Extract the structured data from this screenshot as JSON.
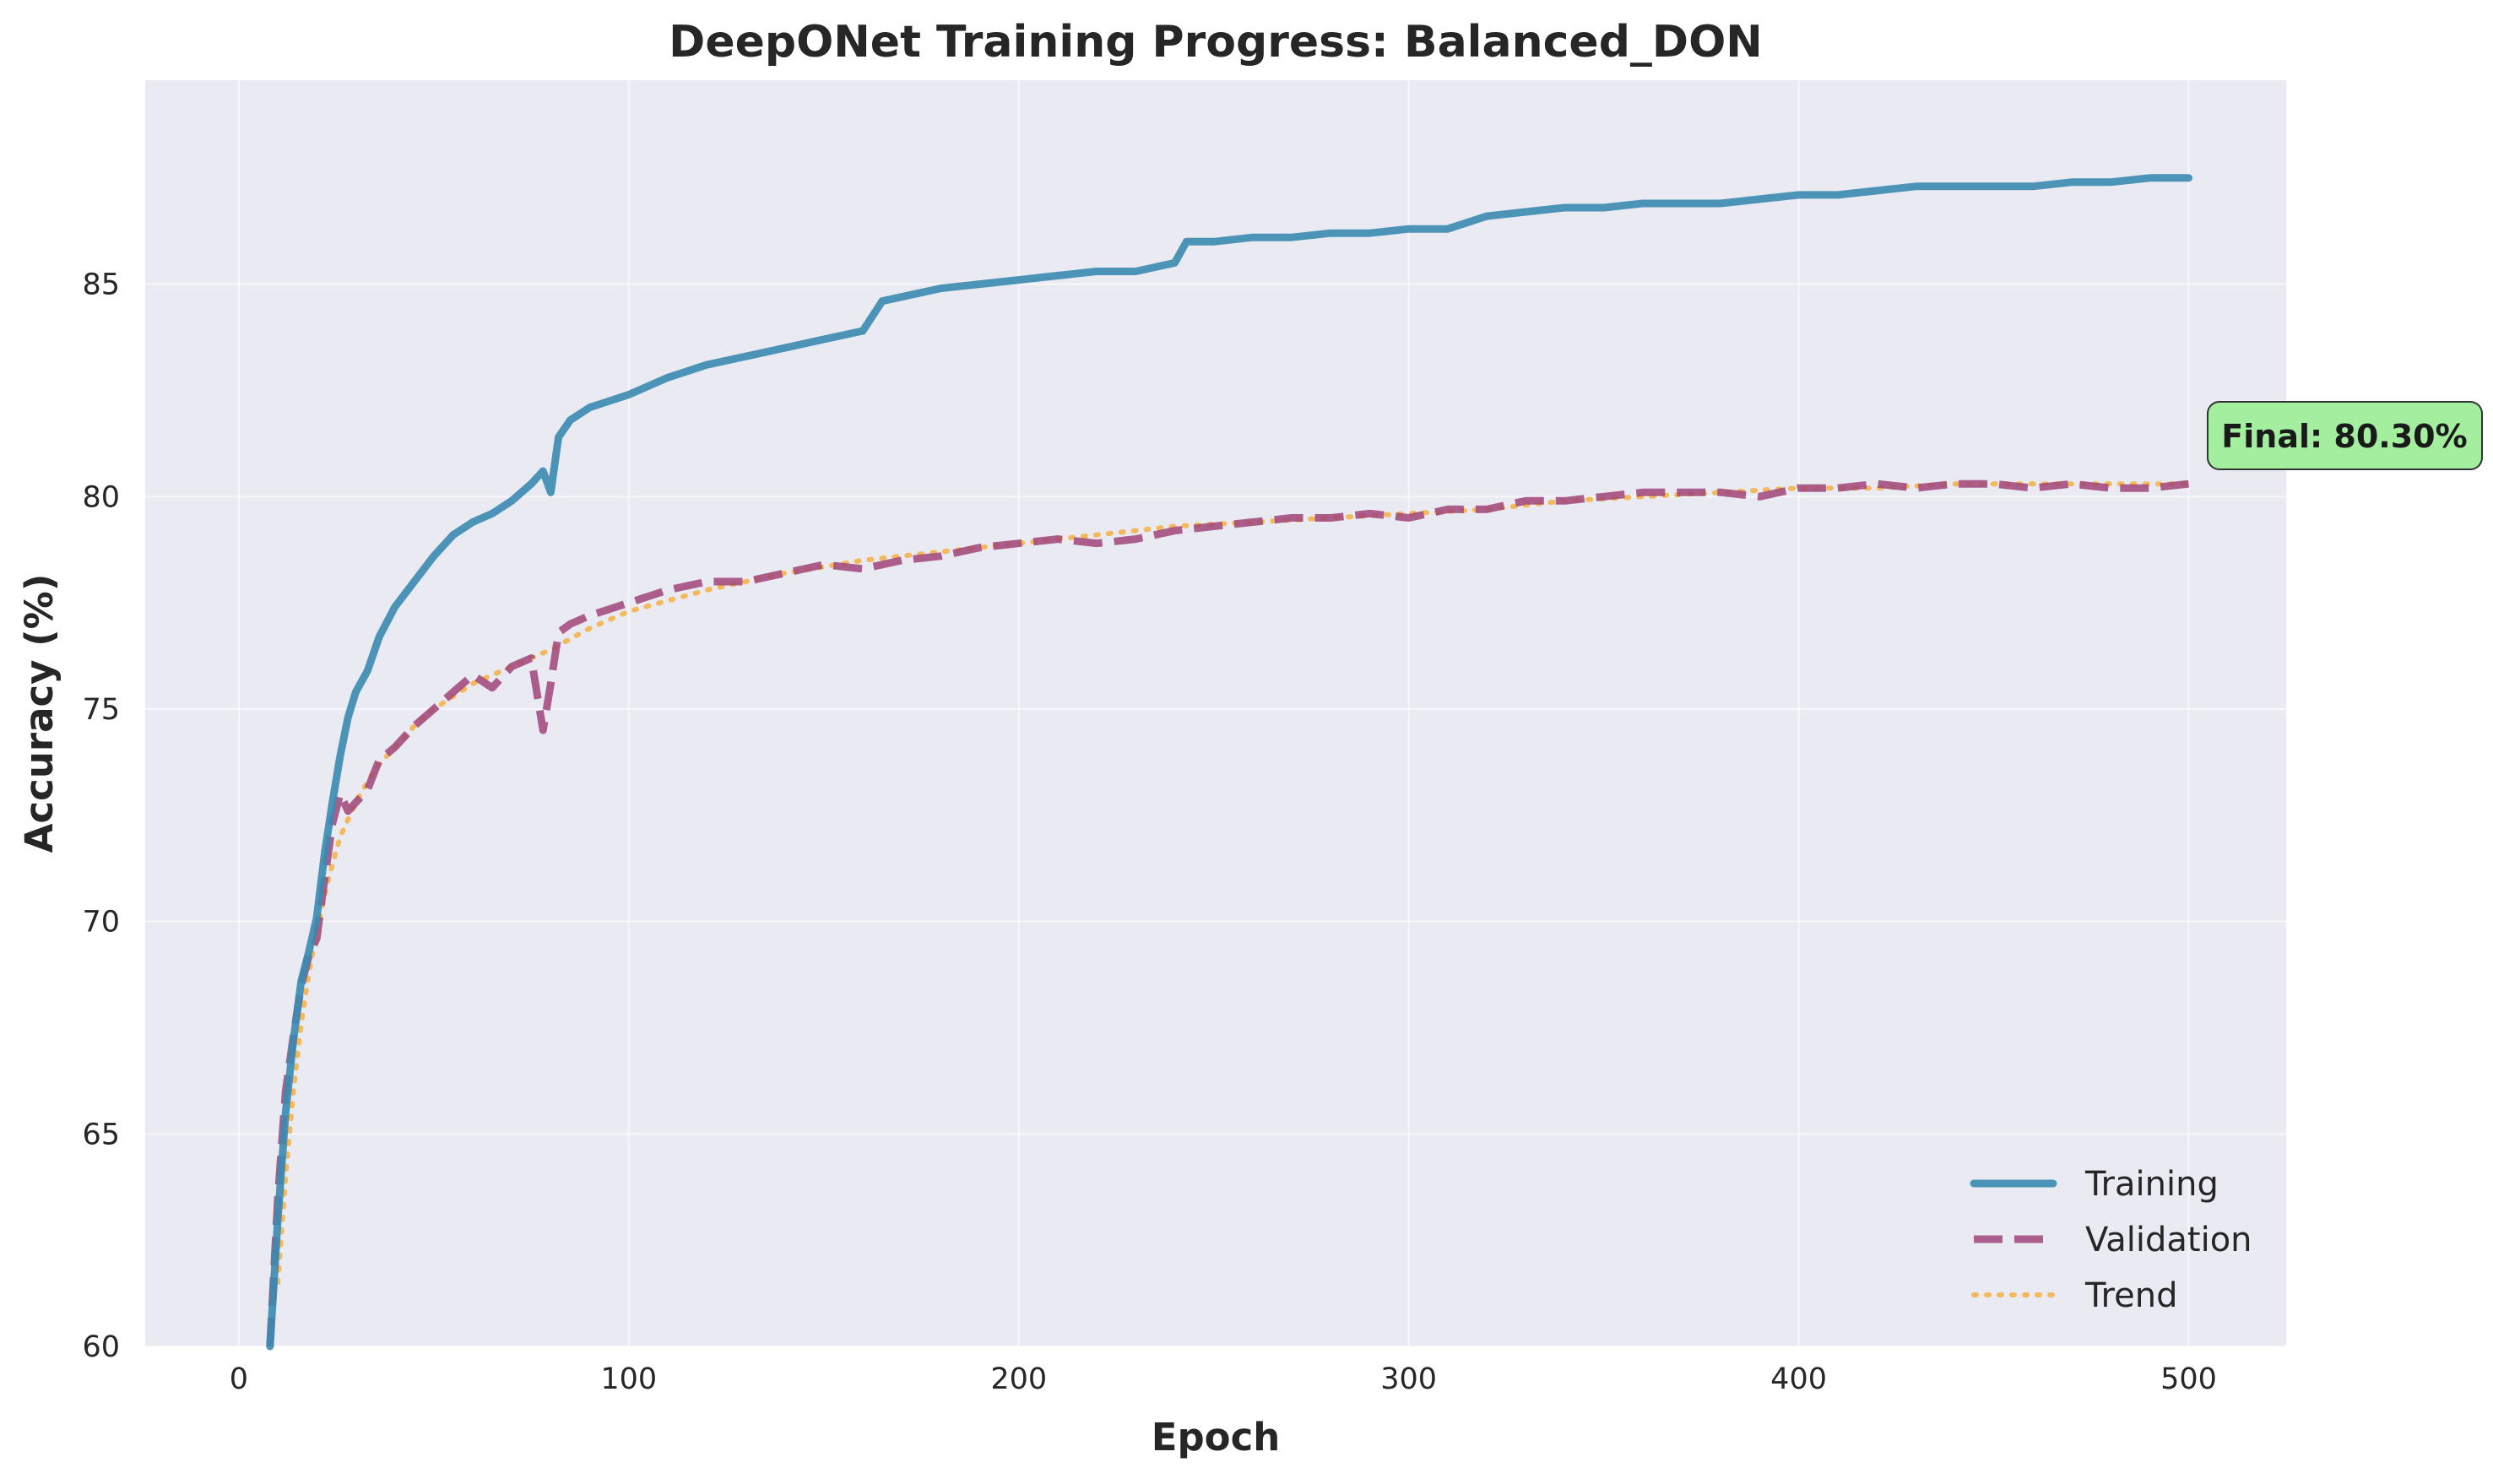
{
  "chart_data": {
    "type": "line",
    "title": "DeepONet Training Progress: Balanced_DON",
    "xlabel": "Epoch",
    "ylabel": "Accuracy (%)",
    "xlim": [
      -24,
      525
    ],
    "ylim": [
      60,
      89.8
    ],
    "xticks": [
      0,
      100,
      200,
      300,
      400,
      500
    ],
    "yticks": [
      60,
      65,
      70,
      75,
      80,
      85
    ],
    "grid": true,
    "legend_position": "lower-right",
    "annotation": "Final: 80.30%",
    "series": [
      {
        "name": "Training",
        "color": "#3a8bb0",
        "style": "solid",
        "x": [
          8,
          10,
          12,
          14,
          16,
          18,
          20,
          22,
          24,
          26,
          28,
          30,
          33,
          36,
          40,
          45,
          50,
          55,
          60,
          65,
          70,
          75,
          78,
          80,
          82,
          85,
          90,
          100,
          110,
          120,
          130,
          140,
          150,
          160,
          165,
          170,
          180,
          190,
          200,
          210,
          220,
          230,
          240,
          243,
          250,
          260,
          270,
          280,
          290,
          300,
          310,
          320,
          330,
          340,
          350,
          360,
          370,
          380,
          390,
          400,
          410,
          420,
          430,
          440,
          450,
          460,
          470,
          480,
          490,
          500
        ],
        "values": [
          60,
          63,
          65.5,
          67.2,
          68.6,
          69.3,
          70.1,
          71.6,
          72.8,
          73.9,
          74.8,
          75.4,
          75.9,
          76.7,
          77.4,
          78.0,
          78.6,
          79.1,
          79.4,
          79.6,
          79.9,
          80.3,
          80.6,
          80.1,
          81.4,
          81.8,
          82.1,
          82.4,
          82.8,
          83.1,
          83.3,
          83.5,
          83.7,
          83.9,
          84.6,
          84.7,
          84.9,
          85.0,
          85.1,
          85.2,
          85.3,
          85.3,
          85.5,
          86.0,
          86.0,
          86.1,
          86.1,
          86.2,
          86.2,
          86.3,
          86.3,
          86.6,
          86.7,
          86.8,
          86.8,
          86.9,
          86.9,
          86.9,
          87.0,
          87.1,
          87.1,
          87.2,
          87.3,
          87.3,
          87.3,
          87.3,
          87.4,
          87.4,
          87.5,
          87.5
        ]
      },
      {
        "name": "Validation",
        "color": "#a0457a",
        "style": "dashed",
        "x": [
          8,
          10,
          12,
          14,
          16,
          18,
          20,
          22,
          24,
          26,
          28,
          30,
          33,
          36,
          40,
          45,
          50,
          55,
          60,
          65,
          70,
          75,
          78,
          80,
          82,
          85,
          90,
          100,
          110,
          120,
          130,
          140,
          150,
          160,
          170,
          180,
          190,
          200,
          210,
          220,
          230,
          240,
          250,
          260,
          270,
          280,
          290,
          300,
          310,
          320,
          330,
          340,
          350,
          360,
          370,
          380,
          390,
          400,
          410,
          420,
          430,
          440,
          450,
          460,
          470,
          480,
          490,
          500
        ],
        "values": [
          60,
          63.5,
          66,
          67.3,
          68.5,
          69.2,
          69.6,
          71.0,
          72.3,
          73.0,
          72.6,
          72.8,
          73.1,
          73.8,
          74.1,
          74.6,
          75.0,
          75.4,
          75.8,
          75.5,
          76.0,
          76.2,
          74.5,
          75.6,
          76.8,
          77.0,
          77.2,
          77.5,
          77.8,
          78.0,
          78.0,
          78.2,
          78.4,
          78.3,
          78.5,
          78.6,
          78.8,
          78.9,
          79.0,
          78.9,
          79.0,
          79.2,
          79.3,
          79.4,
          79.5,
          79.5,
          79.6,
          79.5,
          79.7,
          79.7,
          79.9,
          79.9,
          80.0,
          80.1,
          80.1,
          80.1,
          80.0,
          80.2,
          80.2,
          80.3,
          80.2,
          80.3,
          80.3,
          80.2,
          80.3,
          80.2,
          80.2,
          80.3
        ]
      },
      {
        "name": "Trend",
        "color": "#f5b041",
        "style": "dotted",
        "x": [
          10,
          12,
          14,
          16,
          18,
          20,
          23,
          26,
          30,
          35,
          40,
          45,
          50,
          60,
          70,
          80,
          90,
          100,
          120,
          140,
          160,
          180,
          200,
          220,
          240,
          260,
          280,
          300,
          320,
          340,
          360,
          380,
          400,
          420,
          440,
          460,
          480,
          500
        ],
        "values": [
          61.5,
          64.0,
          66.0,
          67.6,
          68.8,
          69.8,
          71.0,
          72.0,
          72.8,
          73.6,
          74.1,
          74.6,
          75.0,
          75.6,
          76.0,
          76.4,
          76.9,
          77.3,
          77.8,
          78.2,
          78.5,
          78.7,
          78.9,
          79.1,
          79.3,
          79.4,
          79.5,
          79.6,
          79.7,
          79.9,
          80.0,
          80.1,
          80.2,
          80.2,
          80.3,
          80.3,
          80.3,
          80.3
        ]
      }
    ]
  }
}
